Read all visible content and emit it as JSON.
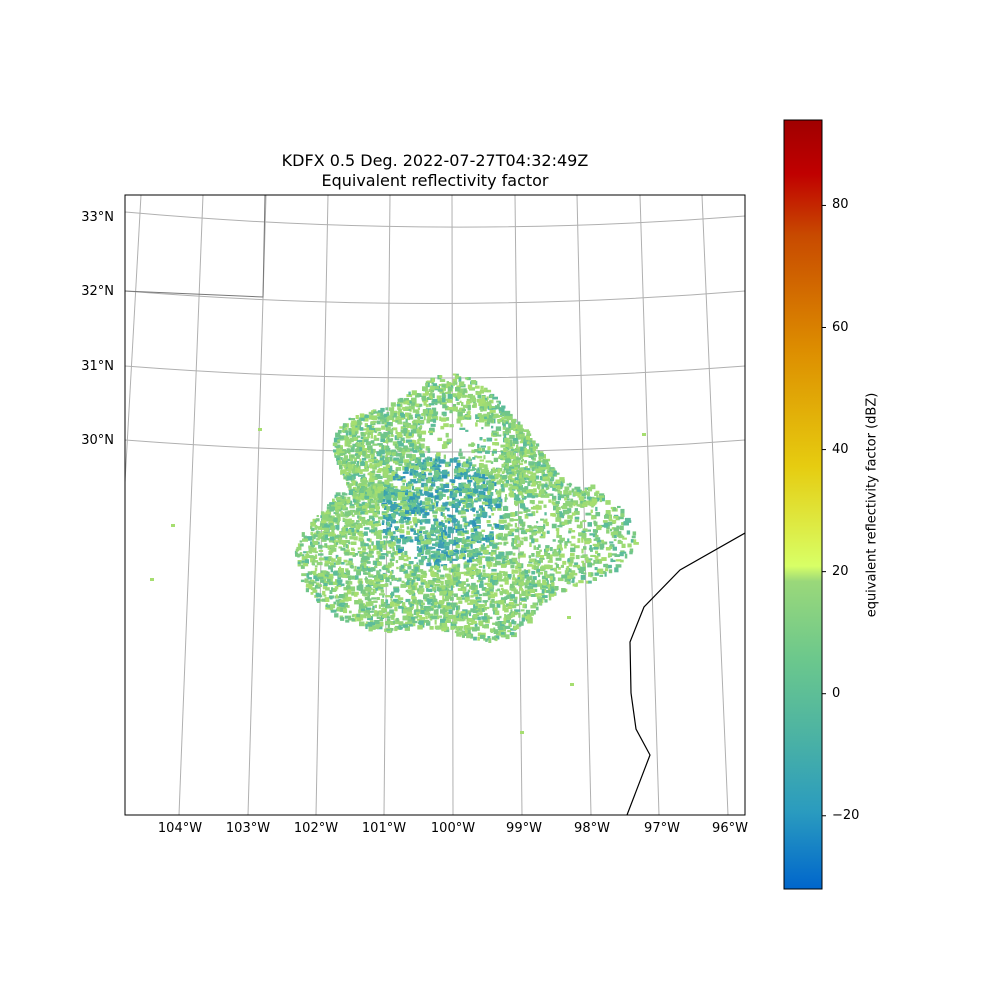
{
  "title": {
    "line1": "KDFX 0.5 Deg. 2022-07-27T04:32:49Z",
    "line2": "Equivalent reflectivity factor"
  },
  "map": {
    "lat_labels": [
      "33°N",
      "32°N",
      "31°N",
      "30°N"
    ],
    "lon_labels": [
      "104°W",
      "103°W",
      "102°W",
      "101°W",
      "100°W",
      "99°W",
      "98°W",
      "97°W",
      "96°W"
    ],
    "radar_site": {
      "lon": -100.28,
      "lat": 29.27
    },
    "echo_range_deg": 2.1,
    "colors": {
      "gridline": "#b0b0b0",
      "border": "#000000",
      "background": "#ffffff"
    }
  },
  "colorbar": {
    "label": "equivalent reflectivity factor (dBZ)",
    "min": -32,
    "max": 94,
    "ticks": [
      "80",
      "60",
      "40",
      "20",
      "0",
      "−20"
    ],
    "tick_values": [
      80,
      60,
      40,
      20,
      0,
      -20
    ],
    "colormap_stops": [
      "#0066cc",
      "#2a9bbf",
      "#5cbc9a",
      "#8fd47a",
      "#d8ff66",
      "#e6cc10",
      "#dd8e00",
      "#cc4c00",
      "#c00000",
      "#a00000"
    ]
  }
}
